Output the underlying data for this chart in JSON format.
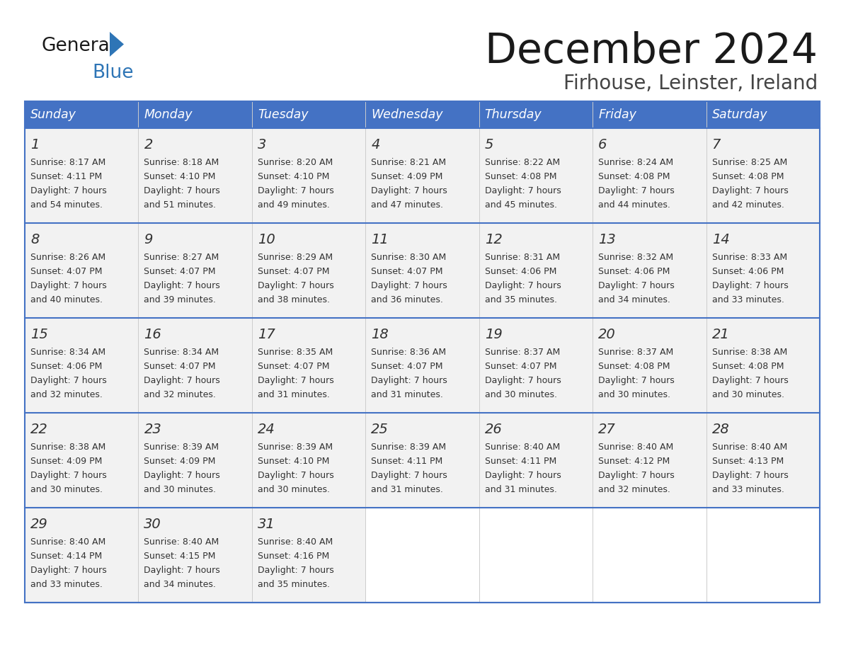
{
  "title": "December 2024",
  "subtitle": "Firhouse, Leinster, Ireland",
  "days_of_week": [
    "Sunday",
    "Monday",
    "Tuesday",
    "Wednesday",
    "Thursday",
    "Friday",
    "Saturday"
  ],
  "header_bg": "#4472C4",
  "header_text": "#FFFFFF",
  "row_bg": "#F2F2F2",
  "border_color": "#4472C4",
  "divider_color": "#B0B8CC",
  "text_color": "#333333",
  "title_color": "#1a1a1a",
  "subtitle_color": "#444444",
  "logo_general_color": "#1a1a1a",
  "logo_blue_color": "#2E75B6",
  "logo_triangle_color": "#2E75B6",
  "weeks": [
    [
      {
        "day": 1,
        "sunrise": "8:17 AM",
        "sunset": "4:11 PM",
        "daylight": "7 hours and 54 minutes."
      },
      {
        "day": 2,
        "sunrise": "8:18 AM",
        "sunset": "4:10 PM",
        "daylight": "7 hours and 51 minutes."
      },
      {
        "day": 3,
        "sunrise": "8:20 AM",
        "sunset": "4:10 PM",
        "daylight": "7 hours and 49 minutes."
      },
      {
        "day": 4,
        "sunrise": "8:21 AM",
        "sunset": "4:09 PM",
        "daylight": "7 hours and 47 minutes."
      },
      {
        "day": 5,
        "sunrise": "8:22 AM",
        "sunset": "4:08 PM",
        "daylight": "7 hours and 45 minutes."
      },
      {
        "day": 6,
        "sunrise": "8:24 AM",
        "sunset": "4:08 PM",
        "daylight": "7 hours and 44 minutes."
      },
      {
        "day": 7,
        "sunrise": "8:25 AM",
        "sunset": "4:08 PM",
        "daylight": "7 hours and 42 minutes."
      }
    ],
    [
      {
        "day": 8,
        "sunrise": "8:26 AM",
        "sunset": "4:07 PM",
        "daylight": "7 hours and 40 minutes."
      },
      {
        "day": 9,
        "sunrise": "8:27 AM",
        "sunset": "4:07 PM",
        "daylight": "7 hours and 39 minutes."
      },
      {
        "day": 10,
        "sunrise": "8:29 AM",
        "sunset": "4:07 PM",
        "daylight": "7 hours and 38 minutes."
      },
      {
        "day": 11,
        "sunrise": "8:30 AM",
        "sunset": "4:07 PM",
        "daylight": "7 hours and 36 minutes."
      },
      {
        "day": 12,
        "sunrise": "8:31 AM",
        "sunset": "4:06 PM",
        "daylight": "7 hours and 35 minutes."
      },
      {
        "day": 13,
        "sunrise": "8:32 AM",
        "sunset": "4:06 PM",
        "daylight": "7 hours and 34 minutes."
      },
      {
        "day": 14,
        "sunrise": "8:33 AM",
        "sunset": "4:06 PM",
        "daylight": "7 hours and 33 minutes."
      }
    ],
    [
      {
        "day": 15,
        "sunrise": "8:34 AM",
        "sunset": "4:06 PM",
        "daylight": "7 hours and 32 minutes."
      },
      {
        "day": 16,
        "sunrise": "8:34 AM",
        "sunset": "4:07 PM",
        "daylight": "7 hours and 32 minutes."
      },
      {
        "day": 17,
        "sunrise": "8:35 AM",
        "sunset": "4:07 PM",
        "daylight": "7 hours and 31 minutes."
      },
      {
        "day": 18,
        "sunrise": "8:36 AM",
        "sunset": "4:07 PM",
        "daylight": "7 hours and 31 minutes."
      },
      {
        "day": 19,
        "sunrise": "8:37 AM",
        "sunset": "4:07 PM",
        "daylight": "7 hours and 30 minutes."
      },
      {
        "day": 20,
        "sunrise": "8:37 AM",
        "sunset": "4:08 PM",
        "daylight": "7 hours and 30 minutes."
      },
      {
        "day": 21,
        "sunrise": "8:38 AM",
        "sunset": "4:08 PM",
        "daylight": "7 hours and 30 minutes."
      }
    ],
    [
      {
        "day": 22,
        "sunrise": "8:38 AM",
        "sunset": "4:09 PM",
        "daylight": "7 hours and 30 minutes."
      },
      {
        "day": 23,
        "sunrise": "8:39 AM",
        "sunset": "4:09 PM",
        "daylight": "7 hours and 30 minutes."
      },
      {
        "day": 24,
        "sunrise": "8:39 AM",
        "sunset": "4:10 PM",
        "daylight": "7 hours and 30 minutes."
      },
      {
        "day": 25,
        "sunrise": "8:39 AM",
        "sunset": "4:11 PM",
        "daylight": "7 hours and 31 minutes."
      },
      {
        "day": 26,
        "sunrise": "8:40 AM",
        "sunset": "4:11 PM",
        "daylight": "7 hours and 31 minutes."
      },
      {
        "day": 27,
        "sunrise": "8:40 AM",
        "sunset": "4:12 PM",
        "daylight": "7 hours and 32 minutes."
      },
      {
        "day": 28,
        "sunrise": "8:40 AM",
        "sunset": "4:13 PM",
        "daylight": "7 hours and 33 minutes."
      }
    ],
    [
      {
        "day": 29,
        "sunrise": "8:40 AM",
        "sunset": "4:14 PM",
        "daylight": "7 hours and 33 minutes."
      },
      {
        "day": 30,
        "sunrise": "8:40 AM",
        "sunset": "4:15 PM",
        "daylight": "7 hours and 34 minutes."
      },
      {
        "day": 31,
        "sunrise": "8:40 AM",
        "sunset": "4:16 PM",
        "daylight": "7 hours and 35 minutes."
      },
      null,
      null,
      null,
      null
    ]
  ]
}
